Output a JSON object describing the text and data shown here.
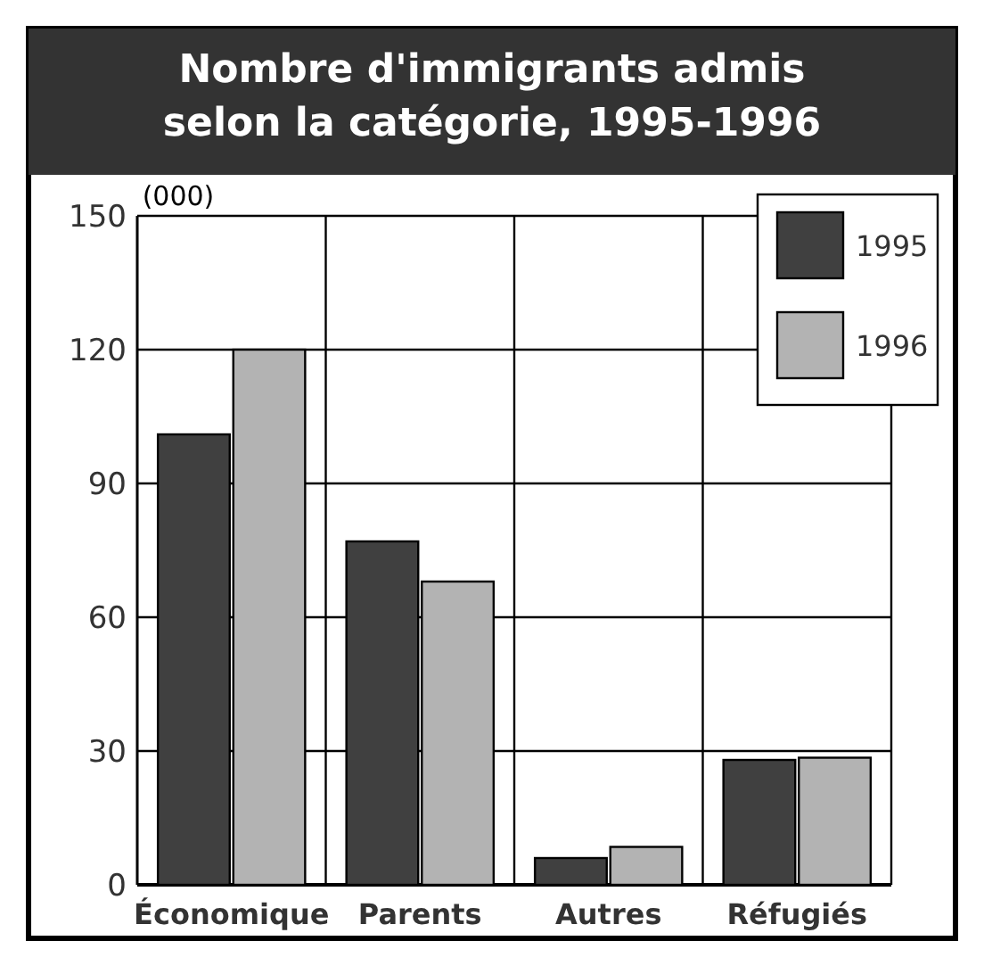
{
  "chart_data": {
    "type": "bar",
    "title": "Nombre d'immigrants admis\nselon la catégorie, 1995-1996",
    "ylabel": "(000)",
    "categories": [
      "Économique",
      "Parents",
      "Autres",
      "Réfugiés"
    ],
    "series": [
      {
        "name": "1995",
        "color": "#404040",
        "values": [
          101,
          77,
          6,
          28
        ]
      },
      {
        "name": "1996",
        "color": "#b3b3b3",
        "values": [
          120,
          68,
          8.5,
          28.5
        ]
      }
    ],
    "ylim": [
      0,
      150
    ],
    "yticks": [
      0,
      30,
      60,
      90,
      120,
      150
    ],
    "grid": true,
    "legend": "top right"
  }
}
